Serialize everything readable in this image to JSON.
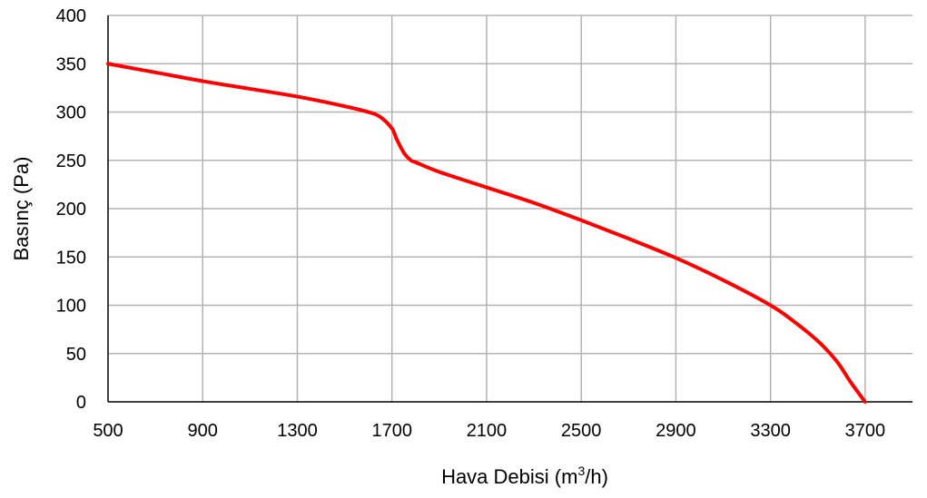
{
  "chart_data": {
    "type": "line",
    "xlabel": "Hava Debisi (m",
    "xlabel_sup": "3",
    "xlabel_suffix": "/h)",
    "ylabel": "Basınç (Pa)",
    "xlim": [
      500,
      3900
    ],
    "ylim": [
      0,
      400
    ],
    "x_ticks": [
      500,
      900,
      1300,
      1700,
      2100,
      2500,
      2900,
      3300,
      3700
    ],
    "x_tick_labels": [
      "500",
      "900",
      "1300",
      "1700",
      "2100",
      "2500",
      "2900",
      "3300",
      "3700"
    ],
    "y_ticks": [
      0,
      50,
      100,
      150,
      200,
      250,
      300,
      350,
      400
    ],
    "y_tick_labels": [
      "0",
      "50",
      "100",
      "150",
      "200",
      "250",
      "300",
      "350",
      "400"
    ],
    "grid": true,
    "series": [
      {
        "color": "#ff0000",
        "x": [
          500,
          700,
          900,
          1100,
          1300,
          1500,
          1600,
          1650,
          1700,
          1720,
          1750,
          1780,
          1800,
          1900,
          2100,
          2300,
          2500,
          2700,
          2900,
          3100,
          3300,
          3400,
          3500,
          3580,
          3640,
          3700
        ],
        "y": [
          350,
          341,
          332,
          324,
          316,
          306,
          300,
          295,
          283,
          272,
          258,
          250,
          248,
          238,
          222,
          206,
          188,
          169,
          149,
          126,
          100,
          83,
          63,
          42,
          20,
          0
        ]
      }
    ]
  }
}
